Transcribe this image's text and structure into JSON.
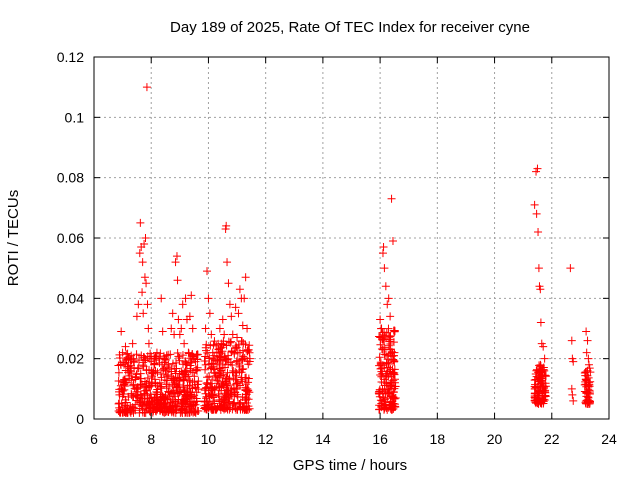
{
  "chart_data": {
    "type": "scatter",
    "title": "Day 189 of 2025, Rate Of TEC Index for receiver cyne",
    "xlabel": "GPS time / hours",
    "ylabel": "ROTI / TECUs",
    "xlim": [
      6,
      24
    ],
    "ylim": [
      0,
      0.12
    ],
    "x_ticks": [
      6,
      8,
      10,
      12,
      14,
      16,
      18,
      20,
      22,
      24
    ],
    "x_tick_labels": [
      "6",
      "8",
      "10",
      "12",
      "14",
      "16",
      "18",
      "20",
      "22",
      "24"
    ],
    "y_ticks": [
      0,
      0.02,
      0.04,
      0.06,
      0.08,
      0.1,
      0.12
    ],
    "y_tick_labels": [
      "0",
      "0.02",
      "0.04",
      "0.06",
      "0.08",
      "0.1",
      "0.12"
    ],
    "grid": true,
    "marker": "+",
    "color": "#ff0000",
    "series": [
      {
        "name": "ROTI",
        "points": [
          [
            6.95,
            0.029
          ],
          [
            7.0,
            0.022
          ],
          [
            7.05,
            0.018
          ],
          [
            7.1,
            0.024
          ],
          [
            7.15,
            0.012
          ],
          [
            7.2,
            0.02
          ],
          [
            7.25,
            0.016
          ],
          [
            7.3,
            0.021
          ],
          [
            7.35,
            0.025
          ],
          [
            7.4,
            0.017
          ],
          [
            7.45,
            0.014
          ],
          [
            7.5,
            0.034
          ],
          [
            7.55,
            0.038
          ],
          [
            7.6,
            0.055
          ],
          [
            7.62,
            0.065
          ],
          [
            7.65,
            0.057
          ],
          [
            7.68,
            0.042
          ],
          [
            7.7,
            0.052
          ],
          [
            7.72,
            0.035
          ],
          [
            7.75,
            0.058
          ],
          [
            7.78,
            0.047
          ],
          [
            7.8,
            0.06
          ],
          [
            7.82,
            0.045
          ],
          [
            7.85,
            0.11
          ],
          [
            7.87,
            0.038
          ],
          [
            7.9,
            0.03
          ],
          [
            7.92,
            0.025
          ],
          [
            7.95,
            0.02
          ],
          [
            8.0,
            0.019
          ],
          [
            8.05,
            0.015
          ],
          [
            8.1,
            0.018
          ],
          [
            8.15,
            0.016
          ],
          [
            8.2,
            0.022
          ],
          [
            8.3,
            0.012
          ],
          [
            8.35,
            0.04
          ],
          [
            8.4,
            0.029
          ],
          [
            8.45,
            0.02
          ],
          [
            8.5,
            0.016
          ],
          [
            8.55,
            0.014
          ],
          [
            8.6,
            0.018
          ],
          [
            8.7,
            0.03
          ],
          [
            8.75,
            0.035
          ],
          [
            8.8,
            0.028
          ],
          [
            8.85,
            0.052
          ],
          [
            8.9,
            0.054
          ],
          [
            8.92,
            0.046
          ],
          [
            8.95,
            0.033
          ],
          [
            9.0,
            0.028
          ],
          [
            9.05,
            0.03
          ],
          [
            9.1,
            0.038
          ],
          [
            9.15,
            0.025
          ],
          [
            9.2,
            0.04
          ],
          [
            9.25,
            0.033
          ],
          [
            9.3,
            0.022
          ],
          [
            9.35,
            0.034
          ],
          [
            9.4,
            0.041
          ],
          [
            9.45,
            0.03
          ],
          [
            9.5,
            0.02
          ],
          [
            9.55,
            0.019
          ],
          [
            9.6,
            0.016
          ],
          [
            9.9,
            0.03
          ],
          [
            9.95,
            0.049
          ],
          [
            10.0,
            0.04
          ],
          [
            10.05,
            0.035
          ],
          [
            10.1,
            0.028
          ],
          [
            10.15,
            0.022
          ],
          [
            10.2,
            0.021
          ],
          [
            10.3,
            0.018
          ],
          [
            10.4,
            0.03
          ],
          [
            10.45,
            0.025
          ],
          [
            10.5,
            0.033
          ],
          [
            10.55,
            0.028
          ],
          [
            10.6,
            0.063
          ],
          [
            10.62,
            0.064
          ],
          [
            10.65,
            0.052
          ],
          [
            10.7,
            0.045
          ],
          [
            10.75,
            0.038
          ],
          [
            10.8,
            0.034
          ],
          [
            10.85,
            0.028
          ],
          [
            10.9,
            0.022
          ],
          [
            10.95,
            0.037
          ],
          [
            11.0,
            0.027
          ],
          [
            11.05,
            0.035
          ],
          [
            11.1,
            0.043
          ],
          [
            11.15,
            0.04
          ],
          [
            11.2,
            0.031
          ],
          [
            11.25,
            0.04
          ],
          [
            11.3,
            0.047
          ],
          [
            11.35,
            0.03
          ],
          [
            16.0,
            0.033
          ],
          [
            16.05,
            0.03
          ],
          [
            16.1,
            0.055
          ],
          [
            16.12,
            0.057
          ],
          [
            16.15,
            0.05
          ],
          [
            16.2,
            0.044
          ],
          [
            16.25,
            0.038
          ],
          [
            16.3,
            0.04
          ],
          [
            16.35,
            0.034
          ],
          [
            16.4,
            0.073
          ],
          [
            16.45,
            0.059
          ],
          [
            16.5,
            0.022
          ],
          [
            21.4,
            0.071
          ],
          [
            21.45,
            0.082
          ],
          [
            21.47,
            0.068
          ],
          [
            21.5,
            0.083
          ],
          [
            21.52,
            0.062
          ],
          [
            21.55,
            0.05
          ],
          [
            21.57,
            0.044
          ],
          [
            21.6,
            0.043
          ],
          [
            21.62,
            0.032
          ],
          [
            21.65,
            0.025
          ],
          [
            21.7,
            0.024
          ],
          [
            21.75,
            0.02
          ],
          [
            22.65,
            0.05
          ],
          [
            22.7,
            0.026
          ],
          [
            22.72,
            0.02
          ],
          [
            22.75,
            0.019
          ],
          [
            22.7,
            0.01
          ],
          [
            22.72,
            0.008
          ],
          [
            22.75,
            0.006
          ],
          [
            23.2,
            0.029
          ],
          [
            23.25,
            0.026
          ],
          [
            23.22,
            0.022
          ],
          [
            23.28,
            0.02
          ],
          [
            23.3,
            0.018
          ],
          [
            23.25,
            0.016
          ],
          [
            23.2,
            0.013
          ],
          [
            23.3,
            0.012
          ],
          [
            23.22,
            0.009
          ],
          [
            23.28,
            0.007
          ],
          [
            23.25,
            0.005
          ]
        ]
      }
    ],
    "clusters": [
      {
        "x_start": 6.85,
        "x_end": 9.65,
        "y_min": 0.002,
        "y_max": 0.022,
        "count": 520
      },
      {
        "x_start": 9.85,
        "x_end": 11.45,
        "y_min": 0.003,
        "y_max": 0.026,
        "count": 320
      },
      {
        "x_start": 15.95,
        "x_end": 16.55,
        "y_min": 0.003,
        "y_max": 0.03,
        "count": 160
      },
      {
        "x_start": 21.4,
        "x_end": 21.8,
        "y_min": 0.005,
        "y_max": 0.018,
        "count": 110
      },
      {
        "x_start": 23.15,
        "x_end": 23.35,
        "y_min": 0.005,
        "y_max": 0.017,
        "count": 45
      }
    ]
  }
}
